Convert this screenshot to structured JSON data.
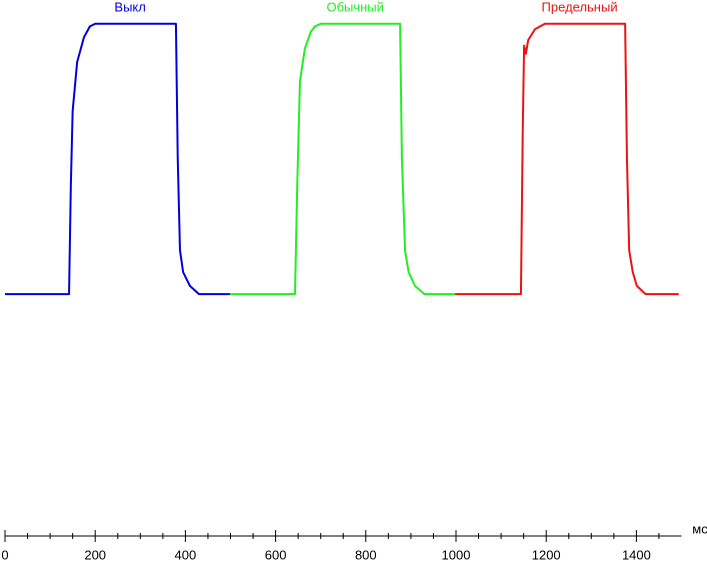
{
  "chart_data": {
    "type": "line",
    "xlabel": "мс",
    "xlim": [
      0,
      1500
    ],
    "ylim": [
      -88.6,
      107.7
    ],
    "xticks": [
      0,
      200,
      400,
      600,
      800,
      1000,
      1200,
      1400
    ],
    "xminorticks": [
      50,
      100,
      150,
      250,
      300,
      350,
      450,
      500,
      550,
      650,
      700,
      750,
      850,
      900,
      950,
      1050,
      1100,
      1150,
      1250,
      1300,
      1350,
      1450
    ],
    "series": [
      {
        "name": "Выкл",
        "color": "#0000dd",
        "x": [
          0,
          142,
          146,
          150,
          160,
          175,
          188,
          200,
          300,
          379,
          383,
          388,
          395,
          410,
          430,
          499
        ],
        "values": [
          0,
          0,
          40,
          67,
          85,
          94,
          98,
          99,
          99,
          99,
          50,
          16,
          8,
          3,
          0,
          0
        ]
      },
      {
        "name": "Обычный",
        "color": "#22ee22",
        "x": [
          499,
          643,
          648,
          654,
          665,
          678,
          687,
          700,
          800,
          876,
          880,
          887,
          895,
          909,
          930,
          998
        ],
        "values": [
          0,
          0,
          40,
          78,
          90,
          96,
          98,
          99,
          99,
          99,
          50,
          16,
          8,
          3,
          0,
          0
        ]
      },
      {
        "name": "Предельный",
        "color": "#ee1111",
        "x": [
          998,
          1144,
          1148,
          1151,
          1155,
          1160,
          1175,
          1197,
          1300,
          1375,
          1379,
          1384,
          1392,
          1401,
          1420,
          1494
        ],
        "values": [
          0,
          0,
          60,
          91,
          88,
          93,
          97,
          99,
          99,
          99,
          50,
          16,
          8,
          3,
          0,
          0
        ]
      }
    ]
  }
}
